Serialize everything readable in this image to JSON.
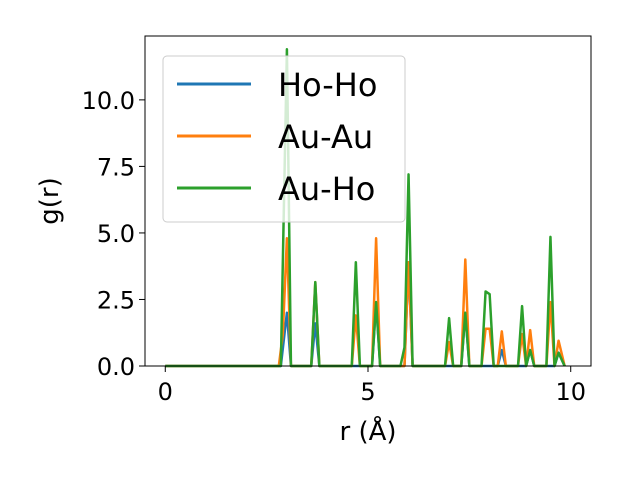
{
  "chart_data": {
    "type": "line",
    "title": "",
    "xlabel": "r (Å)",
    "ylabel": "g(r)",
    "xlim": [
      -0.5,
      10.5
    ],
    "ylim": [
      0,
      12.4
    ],
    "xticks": [
      0,
      5,
      10
    ],
    "xtick_labels": [
      "0",
      "5",
      "10"
    ],
    "yticks": [
      0.0,
      2.5,
      5.0,
      7.5,
      10.0
    ],
    "ytick_labels": [
      "0.0",
      "2.5",
      "5.0",
      "7.5",
      "10.0"
    ],
    "grid": false,
    "legend": "upper-left",
    "series": [
      {
        "name": "Ho-Ho",
        "color": "#1f77b4",
        "points": [
          [
            0,
            0
          ],
          [
            2.85,
            0
          ],
          [
            3.0,
            2.0
          ],
          [
            3.1,
            0
          ],
          [
            3.6,
            0
          ],
          [
            3.7,
            1.6
          ],
          [
            3.8,
            0
          ],
          [
            5.1,
            0
          ],
          [
            5.2,
            2.4
          ],
          [
            5.3,
            0
          ],
          [
            5.9,
            0
          ],
          [
            6.0,
            3.9
          ],
          [
            6.1,
            0
          ],
          [
            7.3,
            0
          ],
          [
            7.4,
            2.0
          ],
          [
            7.5,
            0
          ],
          [
            8.2,
            0
          ],
          [
            8.3,
            0.6
          ],
          [
            8.4,
            0
          ],
          [
            8.9,
            0
          ],
          [
            9.0,
            0.6
          ],
          [
            9.1,
            0
          ],
          [
            9.6,
            0
          ],
          [
            9.7,
            0.5
          ],
          [
            9.85,
            0
          ]
        ]
      },
      {
        "name": "Au-Au",
        "color": "#ff7f0e",
        "points": [
          [
            0,
            0
          ],
          [
            2.8,
            0
          ],
          [
            2.9,
            1.2
          ],
          [
            3.0,
            4.8
          ],
          [
            3.1,
            0
          ],
          [
            3.6,
            0
          ],
          [
            3.7,
            3.15
          ],
          [
            3.8,
            0
          ],
          [
            4.6,
            0
          ],
          [
            4.7,
            1.9
          ],
          [
            4.8,
            0
          ],
          [
            5.1,
            0
          ],
          [
            5.2,
            4.8
          ],
          [
            5.3,
            0
          ],
          [
            5.9,
            0
          ],
          [
            6.0,
            3.9
          ],
          [
            6.1,
            0
          ],
          [
            6.9,
            0
          ],
          [
            7.0,
            0.9
          ],
          [
            7.1,
            0
          ],
          [
            7.3,
            0
          ],
          [
            7.4,
            4.0
          ],
          [
            7.5,
            0
          ],
          [
            7.8,
            0
          ],
          [
            7.9,
            1.4
          ],
          [
            8.0,
            1.4
          ],
          [
            8.1,
            0
          ],
          [
            8.2,
            0
          ],
          [
            8.3,
            1.3
          ],
          [
            8.4,
            0
          ],
          [
            8.7,
            0
          ],
          [
            8.8,
            1.2
          ],
          [
            8.9,
            0
          ],
          [
            8.9,
            0
          ],
          [
            9.0,
            1.35
          ],
          [
            9.1,
            0
          ],
          [
            9.4,
            0
          ],
          [
            9.5,
            2.4
          ],
          [
            9.6,
            0
          ],
          [
            9.6,
            0
          ],
          [
            9.7,
            0.95
          ],
          [
            9.85,
            0
          ]
        ]
      },
      {
        "name": "Au-Ho",
        "color": "#2ca02c",
        "points": [
          [
            0,
            0
          ],
          [
            2.85,
            0
          ],
          [
            3.0,
            11.9
          ],
          [
            3.1,
            0
          ],
          [
            3.6,
            0
          ],
          [
            3.7,
            3.15
          ],
          [
            3.8,
            0
          ],
          [
            4.6,
            0
          ],
          [
            4.7,
            3.9
          ],
          [
            4.8,
            0
          ],
          [
            5.1,
            0
          ],
          [
            5.2,
            2.4
          ],
          [
            5.3,
            0
          ],
          [
            5.8,
            0
          ],
          [
            5.9,
            0.7
          ],
          [
            6.0,
            7.2
          ],
          [
            6.1,
            0
          ],
          [
            6.9,
            0
          ],
          [
            7.0,
            1.8
          ],
          [
            7.1,
            0
          ],
          [
            7.3,
            0
          ],
          [
            7.4,
            2.0
          ],
          [
            7.5,
            0
          ],
          [
            7.8,
            0
          ],
          [
            7.9,
            2.8
          ],
          [
            8.0,
            2.7
          ],
          [
            8.1,
            0
          ],
          [
            8.7,
            0
          ],
          [
            8.8,
            2.25
          ],
          [
            8.9,
            0
          ],
          [
            8.9,
            0
          ],
          [
            9.0,
            0.6
          ],
          [
            9.1,
            0
          ],
          [
            9.4,
            0
          ],
          [
            9.5,
            4.85
          ],
          [
            9.6,
            0
          ],
          [
            9.6,
            0
          ],
          [
            9.7,
            0.5
          ],
          [
            9.85,
            0
          ]
        ]
      }
    ]
  }
}
